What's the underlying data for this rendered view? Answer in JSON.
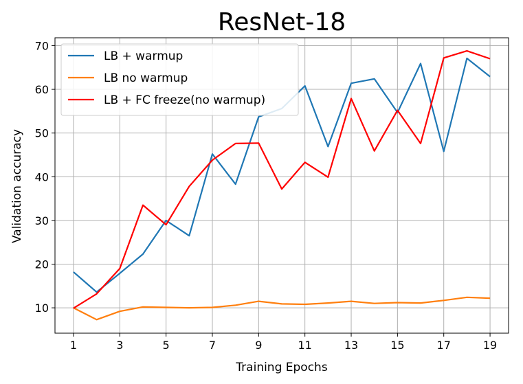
{
  "chart_data": {
    "type": "line",
    "title": "ResNet-18",
    "xlabel": "Training Epochs",
    "ylabel": "Validation accuracy",
    "x": [
      1,
      2,
      3,
      4,
      5,
      6,
      7,
      8,
      9,
      10,
      11,
      12,
      13,
      14,
      15,
      16,
      17,
      18,
      19
    ],
    "xticks": [
      1,
      3,
      5,
      7,
      9,
      11,
      13,
      15,
      17,
      19
    ],
    "yticks": [
      10,
      20,
      30,
      40,
      50,
      60,
      70
    ],
    "xlim": [
      0.2,
      19.8
    ],
    "ylim": [
      4.2,
      71.8
    ],
    "grid": true,
    "legend_position": "top-left",
    "series": [
      {
        "name": "LB + warmup",
        "color": "#1f77b4",
        "values": [
          18.2,
          13.6,
          17.9,
          22.3,
          30.0,
          26.5,
          45.2,
          38.3,
          53.7,
          55.6,
          60.8,
          46.9,
          61.4,
          62.4,
          54.7,
          65.9,
          45.8,
          67.1,
          62.9
        ]
      },
      {
        "name": "LB no warmup",
        "color": "#ff7f0e",
        "values": [
          10.0,
          7.3,
          9.2,
          10.2,
          10.1,
          10.0,
          10.1,
          10.6,
          11.5,
          10.9,
          10.8,
          11.1,
          11.5,
          11.0,
          11.2,
          11.1,
          11.7,
          12.4,
          12.2
        ]
      },
      {
        "name": "LB + FC freeze(no warmup)",
        "color": "#ff0000",
        "values": [
          9.9,
          13.2,
          19.0,
          33.5,
          29.0,
          37.8,
          43.8,
          47.6,
          47.7,
          37.2,
          43.3,
          39.9,
          57.9,
          45.9,
          55.2,
          47.6,
          67.2,
          68.8,
          67.0
        ]
      }
    ]
  }
}
